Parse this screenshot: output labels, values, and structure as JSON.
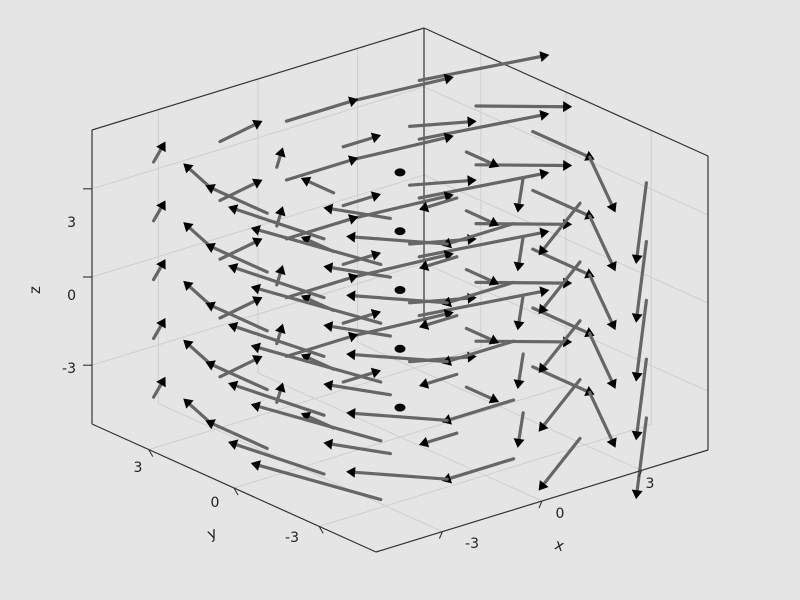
{
  "chart_data": {
    "type": "quiver3d",
    "title": "",
    "xlabel": "x",
    "ylabel": "y",
    "zlabel": "z",
    "xlim": [
      -5,
      5
    ],
    "ylim": [
      -5,
      5
    ],
    "zlim": [
      -5,
      5
    ],
    "xticks": [
      -3,
      0,
      3
    ],
    "yticks": [
      -3,
      0,
      3
    ],
    "zticks": [
      -3,
      0,
      3
    ],
    "xtick_labels": [
      "-3",
      "0",
      "3"
    ],
    "ytick_labels": [
      "-3",
      "0",
      "3"
    ],
    "ztick_labels": [
      "-3",
      "0",
      "3"
    ],
    "grid": true,
    "field": {
      "grid_values": [
        -4,
        -2,
        0,
        2,
        4
      ],
      "u": "y",
      "v": "-x",
      "w": "x*y/8",
      "scale": 0.16
    }
  },
  "colors": {
    "background": "#e5e5e5",
    "frame": "#333333",
    "grid": "#cfcfcf",
    "arrow_shaft": "#666666",
    "arrow_head": "#000000"
  }
}
